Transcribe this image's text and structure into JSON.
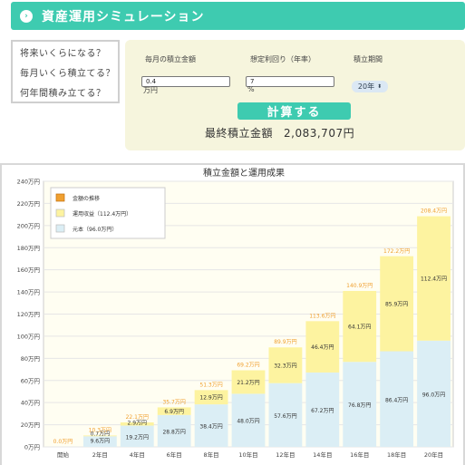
{
  "header": {
    "title": "資産運用シミュレーション",
    "icon": "chevron-right-icon"
  },
  "menu": {
    "items": [
      {
        "label": "将来いくらになる？"
      },
      {
        "label": "毎月いくら積立てる？"
      },
      {
        "label": "何年間積み立てる？"
      }
    ]
  },
  "form": {
    "monthly": {
      "label": "毎月の積立金額",
      "value": "0.4",
      "unit": "万円"
    },
    "rate": {
      "label": "想定利回り（年率）",
      "value": "7",
      "unit": "%"
    },
    "period": {
      "label": "積立期間",
      "selected": "20年"
    },
    "calc_label": "計算する",
    "result_label": "最終積立金額",
    "result_value": "2,083,707円"
  },
  "colors": {
    "accent": "#3ecbb0",
    "principal": "#dbeef5",
    "gain": "#fdf3a0",
    "total_label": "#f0a030",
    "panel": "#f6f5dd"
  },
  "chart_data": {
    "type": "bar",
    "title": "積立金額と運用成果",
    "categories": [
      "開始",
      "2年目",
      "4年目",
      "6年目",
      "8年目",
      "10年目",
      "12年目",
      "14年目",
      "16年目",
      "18年目",
      "20年目"
    ],
    "ylim": [
      0,
      240
    ],
    "yticks": [
      "0万円",
      "20万円",
      "40万円",
      "60万円",
      "80万円",
      "100万円",
      "120万円",
      "140万円",
      "160万円",
      "180万円",
      "200万円",
      "220万円",
      "240万円"
    ],
    "ytick_values": [
      0,
      20,
      40,
      60,
      80,
      100,
      120,
      140,
      160,
      180,
      200,
      220,
      240
    ],
    "legend": [
      {
        "name": "金額の推移"
      },
      {
        "name": "運用収益（112.4万円）"
      },
      {
        "name": "元本（96.0万円）"
      }
    ],
    "legend_position": "top-left",
    "grid": true,
    "series": [
      {
        "role": "principal",
        "values": [
          0,
          9.6,
          19.2,
          28.8,
          38.4,
          48.0,
          57.6,
          67.2,
          76.8,
          86.4,
          96.0
        ],
        "labels": [
          "",
          "9.6万円",
          "19.2万円",
          "28.8万円",
          "38.4万円",
          "48.0万円",
          "57.6万円",
          "67.2万円",
          "76.8万円",
          "86.4万円",
          "96.0万円"
        ]
      },
      {
        "role": "gain",
        "values": [
          0,
          0.7,
          2.9,
          6.9,
          12.9,
          21.2,
          32.3,
          46.4,
          64.1,
          85.9,
          112.4
        ],
        "labels": [
          "",
          "0.7万円",
          "2.9万円",
          "6.9万円",
          "12.9万円",
          "21.2万円",
          "32.3万円",
          "46.4万円",
          "64.1万円",
          "85.9万円",
          "112.4万円"
        ]
      }
    ],
    "totals": [
      0,
      10.3,
      22.1,
      35.7,
      51.3,
      69.2,
      89.9,
      113.6,
      140.9,
      172.2,
      208.4
    ],
    "total_labels": [
      "0.0万円",
      "10.3万円",
      "22.1万円",
      "35.7万円",
      "51.3万円",
      "69.2万円",
      "89.9万円",
      "113.6万円",
      "140.9万円",
      "172.2万円",
      "208.4万円"
    ]
  }
}
